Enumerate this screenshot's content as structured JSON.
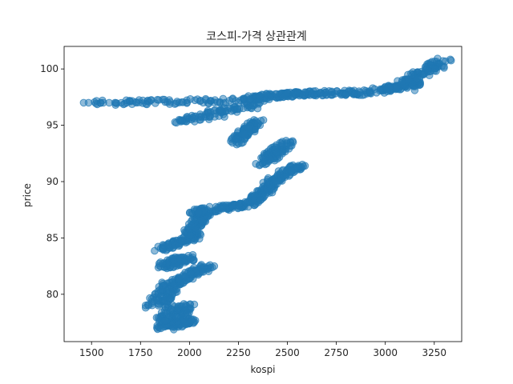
{
  "chart_data": {
    "type": "scatter",
    "title": "코스피-가격 상관관계",
    "xlabel": "kospi",
    "ylabel": "price",
    "xlim": [
      1360,
      3390
    ],
    "ylim": [
      75.8,
      102
    ],
    "xticks": [
      1500,
      1750,
      2000,
      2250,
      2500,
      2750,
      3000,
      3250
    ],
    "yticks": [
      80,
      85,
      90,
      95,
      100
    ],
    "grid": false,
    "legend": "none",
    "point_color": "#1f77b4",
    "point_alpha": 0.5,
    "trend_segments": [
      {
        "x": [
          1860,
          2000
        ],
        "y": [
          77.0,
          77.7
        ],
        "spread": 55
      },
      {
        "x": [
          1900,
          1960
        ],
        "y": [
          77.7,
          79.0
        ],
        "spread": 75
      },
      {
        "x": [
          1830,
          1920
        ],
        "y": [
          79.0,
          81.0
        ],
        "spread": 55
      },
      {
        "x": [
          1920,
          2090
        ],
        "y": [
          81.0,
          82.5
        ],
        "spread": 45
      },
      {
        "x": [
          1870,
          2000
        ],
        "y": [
          82.5,
          83.3
        ],
        "spread": 45
      },
      {
        "x": [
          1850,
          2050
        ],
        "y": [
          84.0,
          85.3
        ],
        "spread": 30
      },
      {
        "x": [
          2000,
          2080
        ],
        "y": [
          85.3,
          87.3
        ],
        "spread": 35
      },
      {
        "x": [
          2020,
          2300
        ],
        "y": [
          87.3,
          88.0
        ],
        "spread": 25
      },
      {
        "x": [
          2300,
          2420
        ],
        "y": [
          88.0,
          89.6
        ],
        "spread": 30
      },
      {
        "x": [
          2380,
          2560
        ],
        "y": [
          89.6,
          91.5
        ],
        "spread": 35
      },
      {
        "x": [
          2360,
          2500
        ],
        "y": [
          91.5,
          93.5
        ],
        "spread": 40
      },
      {
        "x": [
          2230,
          2360
        ],
        "y": [
          93.5,
          95.5
        ],
        "spread": 35
      },
      {
        "x": [
          1950,
          2320
        ],
        "y": [
          95.3,
          96.8
        ],
        "spread": 70
      },
      {
        "x": [
          1500,
          2400
        ],
        "y": [
          97.0,
          97.2
        ],
        "spread": 20
      },
      {
        "x": [
          2300,
          2550
        ],
        "y": [
          97.4,
          97.8
        ],
        "spread": 30
      },
      {
        "x": [
          2550,
          2900
        ],
        "y": [
          97.8,
          97.9
        ],
        "spread": 25
      },
      {
        "x": [
          2950,
          3180
        ],
        "y": [
          98.0,
          98.8
        ],
        "spread": 40
      },
      {
        "x": [
          3100,
          3300
        ],
        "y": [
          98.8,
          100.7
        ],
        "spread": 45
      }
    ],
    "outliers": [
      {
        "x": 1460,
        "y": 97.0
      },
      {
        "x": 1485,
        "y": 97.0
      },
      {
        "x": 1560,
        "y": 97.0
      },
      {
        "x": 1590,
        "y": 97.0
      },
      {
        "x": 1620,
        "y": 97.0
      },
      {
        "x": 1680,
        "y": 97.0
      },
      {
        "x": 1730,
        "y": 97.0
      },
      {
        "x": 2590,
        "y": 91.4
      },
      {
        "x": 2870,
        "y": 97.9
      },
      {
        "x": 2920,
        "y": 97.9
      },
      {
        "x": 3150,
        "y": 98.1
      },
      {
        "x": 3300,
        "y": 100.1
      }
    ]
  }
}
